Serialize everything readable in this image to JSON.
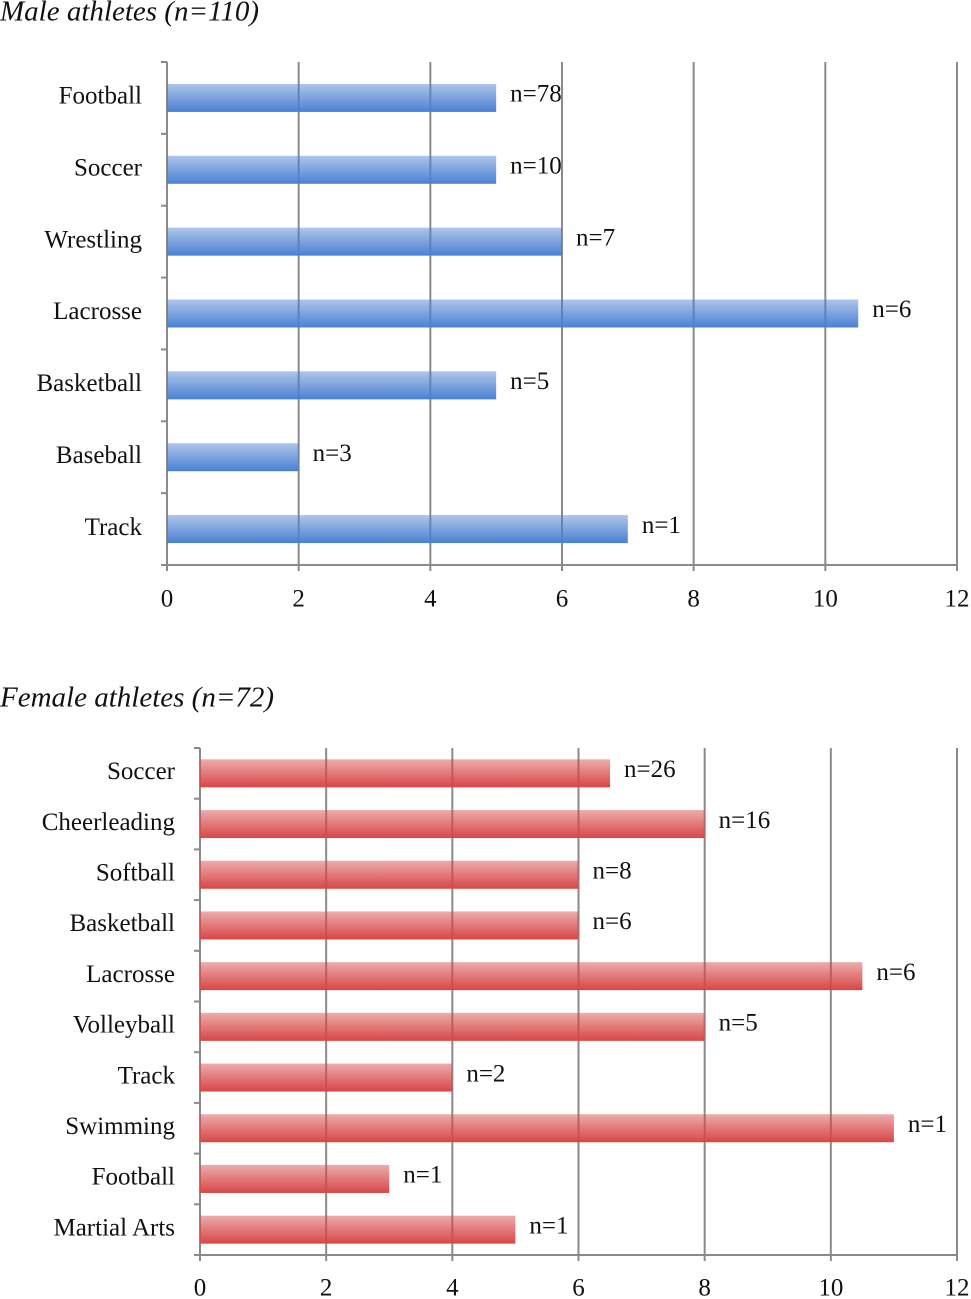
{
  "chart_data": [
    {
      "type": "bar",
      "orientation": "horizontal",
      "title": "Male athletes (n=110)",
      "categories": [
        "Football",
        "Soccer",
        "Wrestling",
        "Lacrosse",
        "Basketball",
        "Baseball",
        "Track"
      ],
      "values": [
        5,
        5,
        6,
        10.5,
        5,
        2,
        7
      ],
      "annotations": [
        "n=78",
        "n=10",
        "n=7",
        "n=6",
        "n=5",
        "n=3",
        "n=1"
      ],
      "color": "#4a80d2",
      "xlim": [
        0,
        12
      ],
      "xticks": [
        0,
        2,
        4,
        6,
        8,
        10,
        12
      ],
      "grid": true
    },
    {
      "type": "bar",
      "orientation": "horizontal",
      "title": "Female athletes (n=72)",
      "categories": [
        "Soccer",
        "Cheerleading",
        "Softball",
        "Basketball",
        "Lacrosse",
        "Volleyball",
        "Track",
        "Swimming",
        "Football",
        "Martial Arts"
      ],
      "values": [
        6.5,
        8,
        6,
        6,
        10.5,
        8,
        4,
        11,
        3,
        5
      ],
      "annotations": [
        "n=26",
        "n=16",
        "n=8",
        "n=6",
        "n=6",
        "n=5",
        "n=2",
        "n=1",
        "n=1",
        "n=1"
      ],
      "color": "#d84646",
      "xlim": [
        0,
        12
      ],
      "xticks": [
        0,
        2,
        4,
        6,
        8,
        10,
        12
      ],
      "grid": true
    }
  ]
}
